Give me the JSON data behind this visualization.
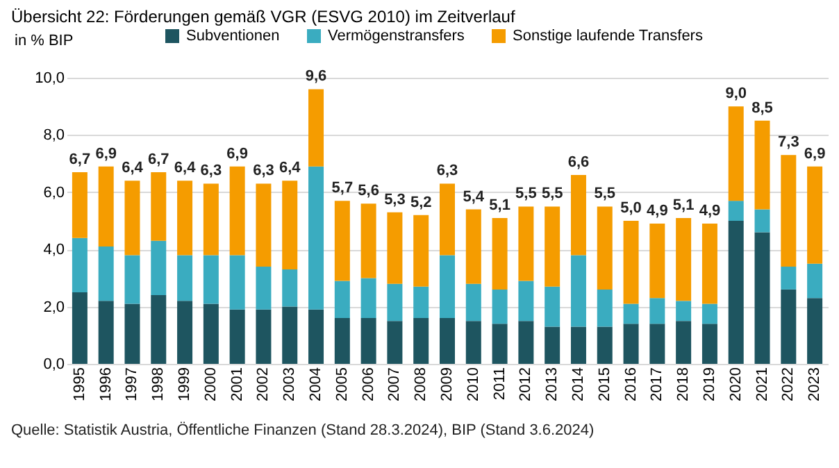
{
  "chart_data": {
    "type": "bar",
    "stacked": true,
    "title": "Übersicht 22: Förderungen gemäß VGR (ESVG 2010) im Zeitverlauf",
    "ylabel": "in % BIP",
    "categories": [
      "1995",
      "1996",
      "1997",
      "1998",
      "1999",
      "2000",
      "2001",
      "2002",
      "2003",
      "2004",
      "2005",
      "2006",
      "2007",
      "2008",
      "2009",
      "2010",
      "2011",
      "2012",
      "2013",
      "2014",
      "2015",
      "2016",
      "2017",
      "2018",
      "2019",
      "2020",
      "2021",
      "2022",
      "2023"
    ],
    "series": [
      {
        "name": "Subventionen",
        "color": "#1e5560",
        "values": [
          2.5,
          2.2,
          2.1,
          2.4,
          2.2,
          2.1,
          1.9,
          1.9,
          2.0,
          1.9,
          1.6,
          1.6,
          1.5,
          1.6,
          1.6,
          1.5,
          1.4,
          1.5,
          1.3,
          1.3,
          1.3,
          1.4,
          1.4,
          1.5,
          1.4,
          5.0,
          4.6,
          2.6,
          2.3
        ]
      },
      {
        "name": "Vermögenstransfers",
        "color": "#3aacc0",
        "values": [
          1.9,
          1.9,
          1.7,
          1.9,
          1.6,
          1.7,
          1.9,
          1.5,
          1.3,
          5.0,
          1.3,
          1.4,
          1.3,
          1.1,
          2.2,
          1.3,
          1.2,
          1.4,
          1.4,
          2.5,
          1.3,
          0.7,
          0.9,
          0.7,
          0.7,
          0.7,
          0.8,
          0.8,
          1.2
        ]
      },
      {
        "name": "Sonstige laufende Transfers",
        "color": "#f59c00",
        "values": [
          2.3,
          2.8,
          2.6,
          2.4,
          2.6,
          2.5,
          3.1,
          2.9,
          3.1,
          2.7,
          2.8,
          2.6,
          2.5,
          2.5,
          2.5,
          2.6,
          2.5,
          2.6,
          2.8,
          2.8,
          2.9,
          2.9,
          2.6,
          2.9,
          2.8,
          3.3,
          3.1,
          3.9,
          3.4
        ]
      }
    ],
    "totals": [
      "6,7",
      "6,9",
      "6,4",
      "6,7",
      "6,4",
      "6,3",
      "6,9",
      "6,3",
      "6,4",
      "9,6",
      "5,7",
      "5,6",
      "5,3",
      "5,2",
      "6,3",
      "5,4",
      "5,1",
      "5,5",
      "5,5",
      "6,6",
      "5,5",
      "5,0",
      "4,9",
      "5,1",
      "4,9",
      "9,0",
      "8,5",
      "7,3",
      "6,9"
    ],
    "ylim": [
      0,
      10
    ],
    "yticks": [
      {
        "value": 0,
        "label": "0,0"
      },
      {
        "value": 2,
        "label": "2,0"
      },
      {
        "value": 4,
        "label": "4,0"
      },
      {
        "value": 6,
        "label": "6,0"
      },
      {
        "value": 8,
        "label": "8,0"
      },
      {
        "value": 10,
        "label": "10,0"
      }
    ],
    "grid": "y",
    "legend": "top",
    "annotations": [
      "Quelle: Statistik Austria, Öffentliche Finanzen (Stand 28.3.2024), BIP (Stand 3.6.2024)"
    ]
  }
}
